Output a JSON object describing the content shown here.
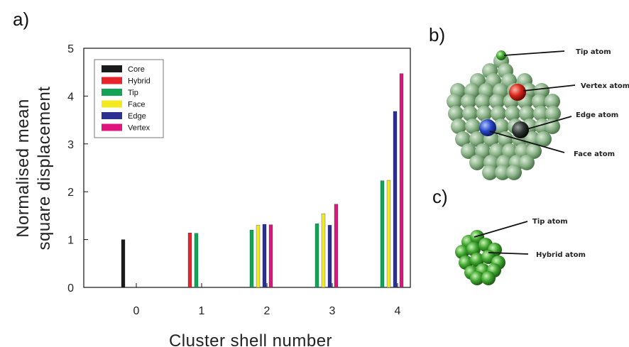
{
  "panels": {
    "a": "a)",
    "b": "b)",
    "c": "c)"
  },
  "chart_data": {
    "type": "bar",
    "xlabel": "Cluster shell number",
    "ylabel": [
      "Normalised mean",
      "square displacement"
    ],
    "categories": [
      "0",
      "1",
      "2",
      "3",
      "4"
    ],
    "ylim": [
      0,
      5
    ],
    "yticks": [
      "0",
      "1",
      "2",
      "3",
      "4",
      "5"
    ],
    "grid": false,
    "legend_position": "top-left",
    "series": [
      {
        "name": "Core",
        "color": "#1a1a1a",
        "values": [
          1.0,
          null,
          null,
          null,
          null
        ]
      },
      {
        "name": "Hybrid",
        "color": "#e8242a",
        "values": [
          null,
          1.14,
          null,
          null,
          null
        ]
      },
      {
        "name": "Tip",
        "color": "#13a356",
        "values": [
          null,
          1.13,
          1.2,
          1.33,
          2.23
        ]
      },
      {
        "name": "Face",
        "color": "#f2ea1c",
        "values": [
          null,
          null,
          1.3,
          1.54,
          2.24
        ]
      },
      {
        "name": "Edge",
        "color": "#2b2f8f",
        "values": [
          null,
          null,
          1.32,
          1.3,
          3.68
        ]
      },
      {
        "name": "Vertex",
        "color": "#e0147e",
        "values": [
          null,
          null,
          1.31,
          1.74,
          4.47
        ]
      }
    ]
  },
  "figure_b": {
    "labels": [
      "Tip atom",
      "Vertex atom",
      "Edge atom",
      "Face atom"
    ]
  },
  "figure_c": {
    "labels": [
      "Tip atom",
      "Hybrid atom"
    ]
  }
}
